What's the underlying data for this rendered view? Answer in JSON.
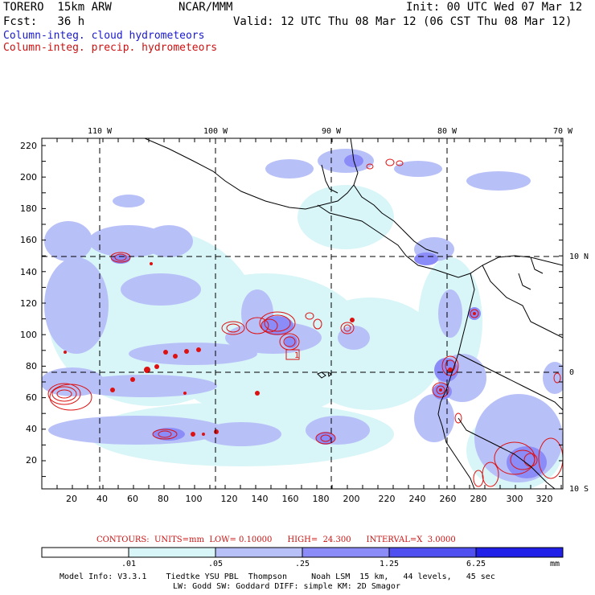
{
  "header": {
    "model": "TORERO  15km ARW",
    "center": "NCAR/MMM",
    "init": "Init: 00 UTC Wed 07 Mar 12",
    "fcst": "Fcst:   36 h",
    "valid": "Valid: 12 UTC Thu 08 Mar 12 (06 CST Thu 08 Mar 12)",
    "legend_cloud": "Column-integ. cloud hydrometeors",
    "legend_precip": "Column-integ. precip. hydrometeors"
  },
  "axes": {
    "lon_labels": [
      "110 W",
      "100 W",
      "90 W",
      "80 W",
      "70 W"
    ],
    "lat_labels": [
      "10 N",
      "0",
      "10 S"
    ],
    "y_ticks": [
      "220",
      "200",
      "180",
      "160",
      "140",
      "120",
      "100",
      "80",
      "60",
      "40",
      "20"
    ],
    "x_ticks": [
      "20",
      "40",
      "60",
      "80",
      "100",
      "120",
      "140",
      "160",
      "180",
      "200",
      "220",
      "240",
      "260",
      "280",
      "300",
      "320"
    ],
    "box_label": "1"
  },
  "contour_info": "CONTOURS:  UNITS=mm  LOW= 0.10000      HIGH=  24.300      INTERVAL=X  3.0000",
  "colorbar": {
    "labels": [
      ".01",
      ".05",
      ".25",
      "1.25",
      "6.25",
      "mm"
    ],
    "colors": [
      "#ffffff",
      "#d8f5f8",
      "#b8c0f8",
      "#8c8cf8",
      "#5050f0",
      "#2020e8"
    ]
  },
  "footer": {
    "line1": "Model Info: V3.3.1    Tiedtke YSU PBL  Thompson     Noah LSM  15 km,   44 levels,   45 sec",
    "line2": "LW: Godd SW: Goddard DIFF: simple KM: 2D Smagor"
  }
}
